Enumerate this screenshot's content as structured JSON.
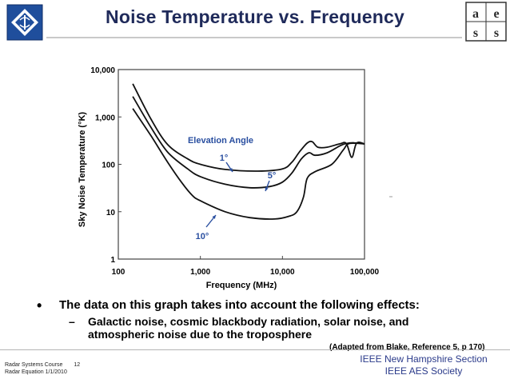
{
  "slide": {
    "title": "Noise Temperature vs. Frequency",
    "bullet": "The data on this graph takes into account the following effects:",
    "sub_bullet_dash": "–",
    "sub_bullet": "Galactic noise, cosmic blackbody radiation, solar noise, and atmospheric noise due to the troposphere",
    "citation": "(Adapted from Blake, Reference 5, p 170)"
  },
  "footer": {
    "course": "Radar Systems Course",
    "page": "12",
    "lecture": "Radar Equation  1/1/2010",
    "org_line1": "IEEE New Hampshire Section",
    "org_line2": "IEEE AES Society"
  },
  "logos": {
    "aes_letters": [
      "a",
      "e",
      "s",
      "s"
    ]
  },
  "colors": {
    "title": "#1f2a5a",
    "annotation": "#2a4fa0",
    "curve": "#111111"
  },
  "chart_data": {
    "type": "line",
    "xlabel": "Frequency (MHz)",
    "ylabel": "Sky Noise Temperature (°K)",
    "xscale": "log",
    "yscale": "log",
    "xlim": [
      100,
      100000
    ],
    "ylim": [
      1,
      10000
    ],
    "xticks": [
      "100",
      "1,000",
      "10,000",
      "100,000"
    ],
    "yticks": [
      "1",
      "10",
      "100",
      "1,000",
      "10,000"
    ],
    "legend_title": "Elevation Angle",
    "series": [
      {
        "name": "1°",
        "points": [
          [
            150,
            5000
          ],
          [
            250,
            900
          ],
          [
            400,
            260
          ],
          [
            700,
            130
          ],
          [
            1000,
            100
          ],
          [
            2000,
            78
          ],
          [
            5000,
            72
          ],
          [
            10000,
            80
          ],
          [
            13000,
            110
          ],
          [
            16000,
            180
          ],
          [
            20000,
            280
          ],
          [
            23000,
            300
          ],
          [
            27000,
            230
          ],
          [
            35000,
            230
          ],
          [
            50000,
            270
          ],
          [
            60000,
            275
          ],
          [
            70000,
            140
          ],
          [
            80000,
            280
          ],
          [
            100000,
            270
          ]
        ]
      },
      {
        "name": "5°",
        "points": [
          [
            150,
            2700
          ],
          [
            250,
            600
          ],
          [
            400,
            180
          ],
          [
            700,
            80
          ],
          [
            1000,
            55
          ],
          [
            2000,
            38
          ],
          [
            4000,
            32
          ],
          [
            7000,
            34
          ],
          [
            10000,
            42
          ],
          [
            13000,
            65
          ],
          [
            17000,
            130
          ],
          [
            21000,
            175
          ],
          [
            25000,
            155
          ],
          [
            35000,
            175
          ],
          [
            50000,
            245
          ],
          [
            60000,
            275
          ],
          [
            75000,
            285
          ],
          [
            100000,
            270
          ]
        ]
      },
      {
        "name": "10°",
        "points": [
          [
            150,
            1500
          ],
          [
            250,
            400
          ],
          [
            400,
            110
          ],
          [
            600,
            40
          ],
          [
            800,
            22
          ],
          [
            1000,
            17
          ],
          [
            2000,
            10
          ],
          [
            4000,
            7.5
          ],
          [
            8000,
            7
          ],
          [
            12000,
            8
          ],
          [
            15000,
            10
          ],
          [
            18000,
            20
          ],
          [
            20000,
            50
          ],
          [
            25000,
            70
          ],
          [
            40000,
            100
          ],
          [
            55000,
            200
          ],
          [
            65000,
            275
          ],
          [
            100000,
            270
          ]
        ]
      }
    ]
  }
}
